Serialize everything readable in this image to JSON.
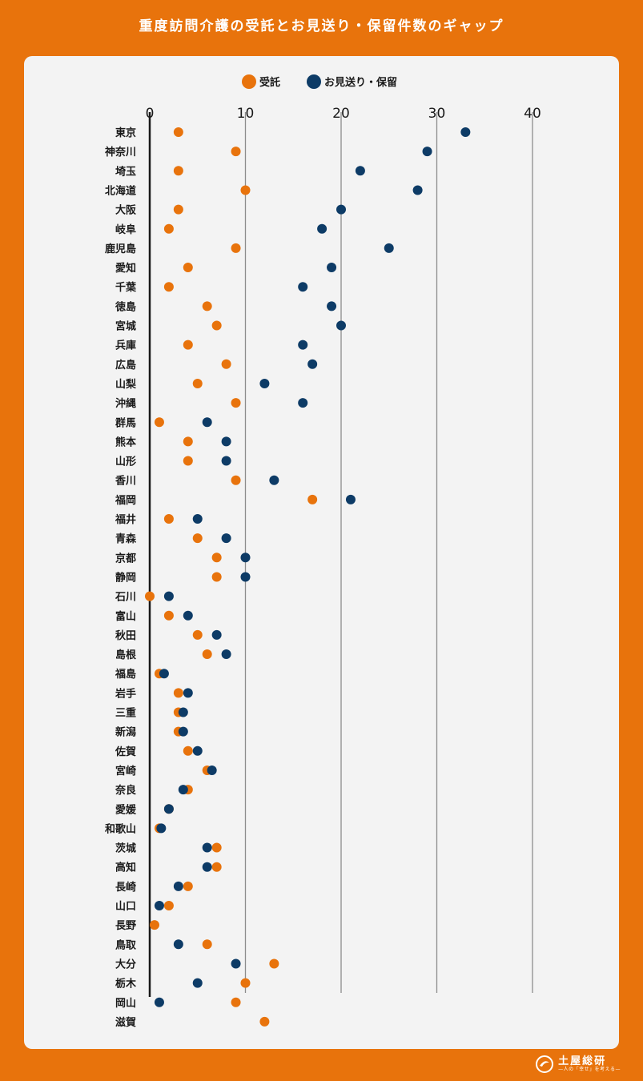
{
  "title": "重度訪問介護の受託とお見送り・保留件数のギャップ",
  "brand": {
    "name": "土屋総研",
    "tagline": "—人の「幸せ」を考える—"
  },
  "colors": {
    "background": "#E8730C",
    "panel": "#F3F3F3",
    "accepted": "#E8730C",
    "declined": "#0D3B66",
    "axis": "#1A1A1A",
    "grid": "#8C8C8C"
  },
  "chart_data": {
    "type": "scatter",
    "title": "重度訪問介護の受託とお見送り・保留件数のギャップ",
    "legend": {
      "placement": "top-center",
      "entries": [
        "受託",
        "お見送り・保留"
      ]
    },
    "xlim": [
      0,
      40
    ],
    "xticks": [
      0,
      10,
      20,
      30,
      40
    ],
    "grid": true,
    "categories": [
      "東京",
      "神奈川",
      "埼玉",
      "北海道",
      "大阪",
      "岐阜",
      "鹿児島",
      "愛知",
      "千葉",
      "徳島",
      "宮城",
      "兵庫",
      "広島",
      "山梨",
      "沖縄",
      "群馬",
      "熊本",
      "山形",
      "香川",
      "福岡",
      "福井",
      "青森",
      "京都",
      "静岡",
      "石川",
      "富山",
      "秋田",
      "島根",
      "福島",
      "岩手",
      "三重",
      "新潟",
      "佐賀",
      "宮崎",
      "奈良",
      "愛媛",
      "和歌山",
      "茨城",
      "高知",
      "長崎",
      "山口",
      "長野",
      "鳥取",
      "大分",
      "栃木",
      "岡山",
      "滋賀"
    ],
    "series": [
      {
        "name": "受託",
        "values": [
          3,
          9,
          3,
          10,
          3,
          2,
          9,
          4,
          2,
          6,
          7,
          4,
          8,
          5,
          9,
          1,
          4,
          4,
          9,
          17,
          2,
          5,
          7,
          7,
          0,
          2,
          5,
          6,
          1,
          3,
          3,
          3,
          4,
          6,
          4,
          2,
          1,
          7,
          7,
          4,
          2,
          0.5,
          6,
          13,
          10,
          9,
          12
        ]
      },
      {
        "name": "お見送り・保留",
        "values": [
          33,
          29,
          22,
          28,
          20,
          18,
          25,
          19,
          16,
          19,
          20,
          16,
          17,
          12,
          16,
          6,
          8,
          8,
          13,
          21,
          5,
          8,
          10,
          10,
          2,
          4,
          7,
          8,
          1.5,
          4,
          3.5,
          3.5,
          5,
          6.5,
          3.5,
          2,
          1.2,
          6,
          6,
          3,
          1,
          null,
          3,
          9,
          5,
          1,
          null
        ]
      }
    ]
  }
}
